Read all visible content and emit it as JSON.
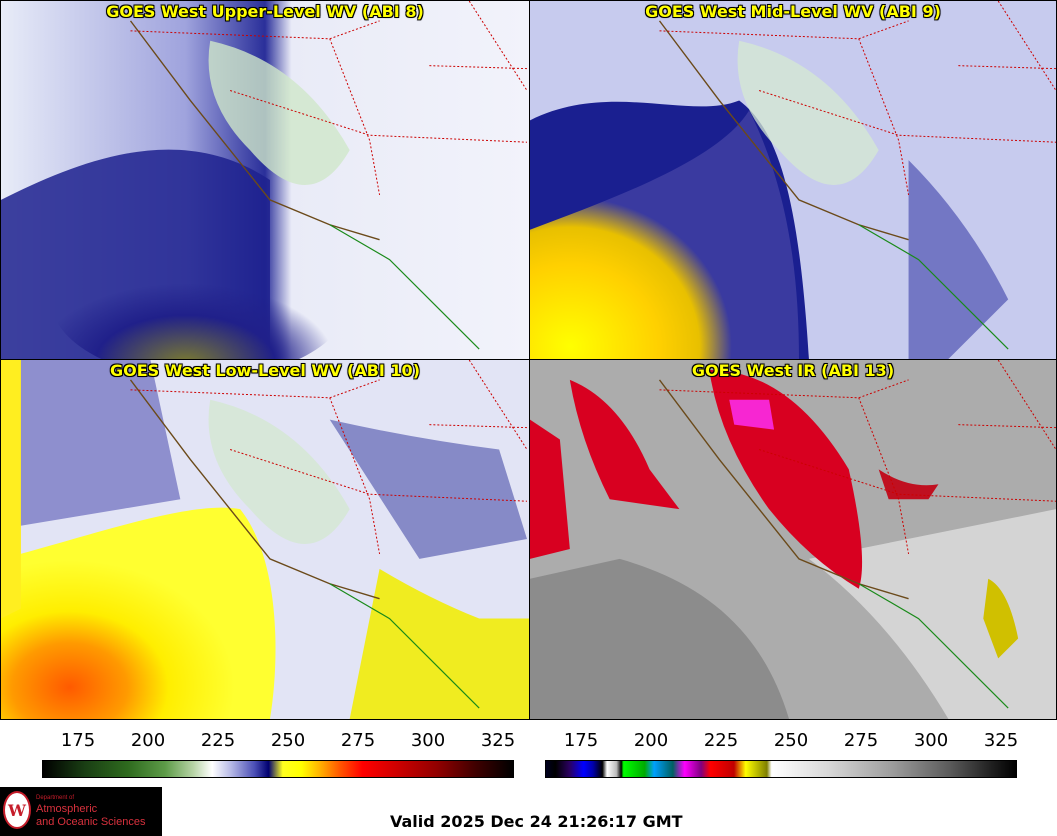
{
  "panels": [
    {
      "title": "GOES West Upper-Level WV (ABI 8)"
    },
    {
      "title": "GOES West Mid-Level WV (ABI 9)"
    },
    {
      "title": "GOES West Low-Level WV (ABI 10)"
    },
    {
      "title": "GOES West IR (ABI 13)"
    }
  ],
  "colorbars": [
    {
      "ticks": [
        "175",
        "200",
        "225",
        "250",
        "275",
        "300",
        "325"
      ],
      "scheme": "water-vapor"
    },
    {
      "ticks": [
        "175",
        "200",
        "225",
        "250",
        "275",
        "300",
        "325"
      ],
      "scheme": "infrared"
    }
  ],
  "logo": {
    "department": "Department of",
    "line1": "Atmospheric",
    "line2": "and Oceanic Sciences",
    "seal_letter": "W"
  },
  "valid_time": "Valid 2025 Dec 24 21:26:17 GMT",
  "colors": {
    "title_text": "#ffff00",
    "state_borders": "#cc0000",
    "coastline": "#6b4a1a",
    "mexico_coast": "#1a8a1a",
    "logo_red": "#c51d2a"
  }
}
